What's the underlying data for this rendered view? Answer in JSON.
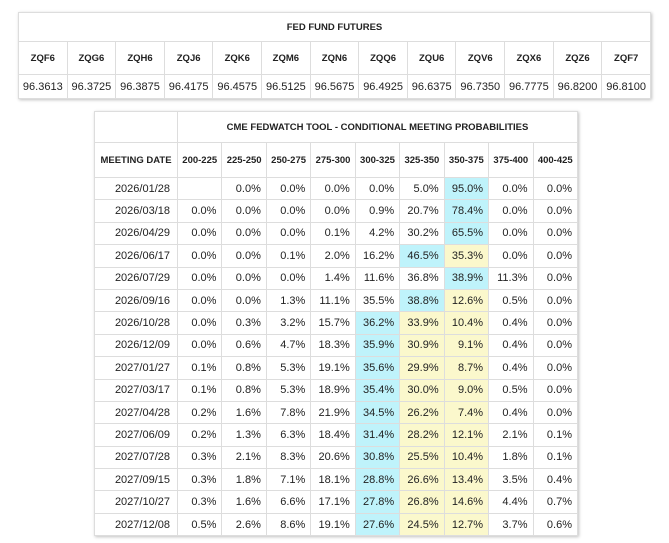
{
  "futures": {
    "title": "FED FUND FUTURES",
    "headers": [
      "ZQF6",
      "ZQG6",
      "ZQH6",
      "ZQJ6",
      "ZQK6",
      "ZQM6",
      "ZQN6",
      "ZQQ6",
      "ZQU6",
      "ZQV6",
      "ZQX6",
      "ZQZ6",
      "ZQF7"
    ],
    "values": [
      "96.3613",
      "96.3725",
      "96.3875",
      "96.4175",
      "96.4575",
      "96.5125",
      "96.5675",
      "96.4925",
      "96.6375",
      "96.7350",
      "96.7775",
      "96.8200",
      "96.8100"
    ]
  },
  "fedwatch": {
    "title": "CME FEDWATCH TOOL - CONDITIONAL MEETING PROBABILITIES",
    "date_header": "MEETING DATE",
    "headers": [
      "200-225",
      "225-250",
      "250-275",
      "275-300",
      "300-325",
      "325-350",
      "350-375",
      "375-400",
      "400-425"
    ],
    "rows": [
      {
        "date": "2026/01/28",
        "cells": [
          null,
          "0.0%",
          "0.0%",
          "0.0%",
          "0.0%",
          "5.0%",
          "95.0%",
          "0.0%",
          "0.0%"
        ],
        "cell_colors": [
          null,
          null,
          null,
          null,
          null,
          null,
          "#bff3fb",
          null,
          null
        ]
      },
      {
        "date": "2026/03/18",
        "cells": [
          "0.0%",
          "0.0%",
          "0.0%",
          "0.0%",
          "0.9%",
          "20.7%",
          "78.4%",
          "0.0%",
          "0.0%"
        ],
        "cell_colors": [
          null,
          null,
          null,
          null,
          null,
          null,
          "#bff3fb",
          null,
          null
        ]
      },
      {
        "date": "2026/04/29",
        "cells": [
          "0.0%",
          "0.0%",
          "0.0%",
          "0.1%",
          "4.2%",
          "30.2%",
          "65.5%",
          "0.0%",
          "0.0%"
        ],
        "cell_colors": [
          null,
          null,
          null,
          null,
          null,
          null,
          "#bff3fb",
          null,
          null
        ]
      },
      {
        "date": "2026/06/17",
        "cells": [
          "0.0%",
          "0.0%",
          "0.1%",
          "2.0%",
          "16.2%",
          "46.5%",
          "35.3%",
          "0.0%",
          "0.0%"
        ],
        "cell_colors": [
          null,
          null,
          null,
          null,
          null,
          "#bff3fb",
          "#fbf8cc",
          null,
          null
        ]
      },
      {
        "date": "2026/07/29",
        "cells": [
          "0.0%",
          "0.0%",
          "0.0%",
          "1.4%",
          "11.6%",
          "36.8%",
          "38.9%",
          "11.3%",
          "0.0%"
        ],
        "cell_colors": [
          null,
          null,
          null,
          null,
          null,
          null,
          "#bff3fb",
          null,
          null
        ]
      },
      {
        "date": "2026/09/16",
        "cells": [
          "0.0%",
          "0.0%",
          "1.3%",
          "11.1%",
          "35.5%",
          "38.8%",
          "12.6%",
          "0.5%",
          "0.0%"
        ],
        "cell_colors": [
          null,
          null,
          null,
          null,
          null,
          "#bff3fb",
          "#fbf8cc",
          null,
          null
        ]
      },
      {
        "date": "2026/10/28",
        "cells": [
          "0.0%",
          "0.3%",
          "3.2%",
          "15.7%",
          "36.2%",
          "33.9%",
          "10.4%",
          "0.4%",
          "0.0%"
        ],
        "cell_colors": [
          null,
          null,
          null,
          null,
          "#bff3fb",
          "#fbf8cc",
          "#fbf8cc",
          null,
          null
        ]
      },
      {
        "date": "2026/12/09",
        "cells": [
          "0.0%",
          "0.6%",
          "4.7%",
          "18.3%",
          "35.9%",
          "30.9%",
          "9.1%",
          "0.4%",
          "0.0%"
        ],
        "cell_colors": [
          null,
          null,
          null,
          null,
          "#bff3fb",
          "#fbf8cc",
          "#fbf8cc",
          null,
          null
        ]
      },
      {
        "date": "2027/01/27",
        "cells": [
          "0.1%",
          "0.8%",
          "5.3%",
          "19.1%",
          "35.6%",
          "29.9%",
          "8.7%",
          "0.4%",
          "0.0%"
        ],
        "cell_colors": [
          null,
          null,
          null,
          null,
          "#bff3fb",
          "#fbf8cc",
          "#fbf8cc",
          null,
          null
        ]
      },
      {
        "date": "2027/03/17",
        "cells": [
          "0.1%",
          "0.8%",
          "5.3%",
          "18.9%",
          "35.4%",
          "30.0%",
          "9.0%",
          "0.5%",
          "0.0%"
        ],
        "cell_colors": [
          null,
          null,
          null,
          null,
          "#bff3fb",
          "#fbf8cc",
          "#fbf8cc",
          null,
          null
        ]
      },
      {
        "date": "2027/04/28",
        "cells": [
          "0.2%",
          "1.6%",
          "7.8%",
          "21.9%",
          "34.5%",
          "26.2%",
          "7.4%",
          "0.4%",
          "0.0%"
        ],
        "cell_colors": [
          null,
          null,
          null,
          null,
          "#bff3fb",
          "#fbf8cc",
          "#fbf8cc",
          null,
          null
        ]
      },
      {
        "date": "2027/06/09",
        "cells": [
          "0.2%",
          "1.3%",
          "6.3%",
          "18.4%",
          "31.4%",
          "28.2%",
          "12.1%",
          "2.1%",
          "0.1%"
        ],
        "cell_colors": [
          null,
          null,
          null,
          null,
          "#bff3fb",
          "#fbf8cc",
          "#fbf8cc",
          null,
          null
        ]
      },
      {
        "date": "2027/07/28",
        "cells": [
          "0.3%",
          "2.1%",
          "8.3%",
          "20.6%",
          "30.8%",
          "25.5%",
          "10.4%",
          "1.8%",
          "0.1%"
        ],
        "cell_colors": [
          null,
          null,
          null,
          null,
          "#bff3fb",
          "#fbf8cc",
          "#fbf8cc",
          null,
          null
        ]
      },
      {
        "date": "2027/09/15",
        "cells": [
          "0.3%",
          "1.8%",
          "7.1%",
          "18.1%",
          "28.8%",
          "26.6%",
          "13.4%",
          "3.5%",
          "0.4%"
        ],
        "cell_colors": [
          null,
          null,
          null,
          null,
          "#bff3fb",
          "#fbf8cc",
          "#fbf8cc",
          null,
          null
        ]
      },
      {
        "date": "2027/10/27",
        "cells": [
          "0.3%",
          "1.6%",
          "6.6%",
          "17.1%",
          "27.8%",
          "26.8%",
          "14.6%",
          "4.4%",
          "0.7%"
        ],
        "cell_colors": [
          null,
          null,
          null,
          null,
          "#bff3fb",
          "#fbf8cc",
          "#fbf8cc",
          null,
          null
        ]
      },
      {
        "date": "2027/12/08",
        "cells": [
          "0.5%",
          "2.6%",
          "8.6%",
          "19.1%",
          "27.6%",
          "24.5%",
          "12.7%",
          "3.7%",
          "0.6%"
        ],
        "cell_colors": [
          null,
          null,
          null,
          null,
          "#bff3fb",
          "#fbf8cc",
          "#fbf8cc",
          null,
          null
        ]
      }
    ]
  }
}
